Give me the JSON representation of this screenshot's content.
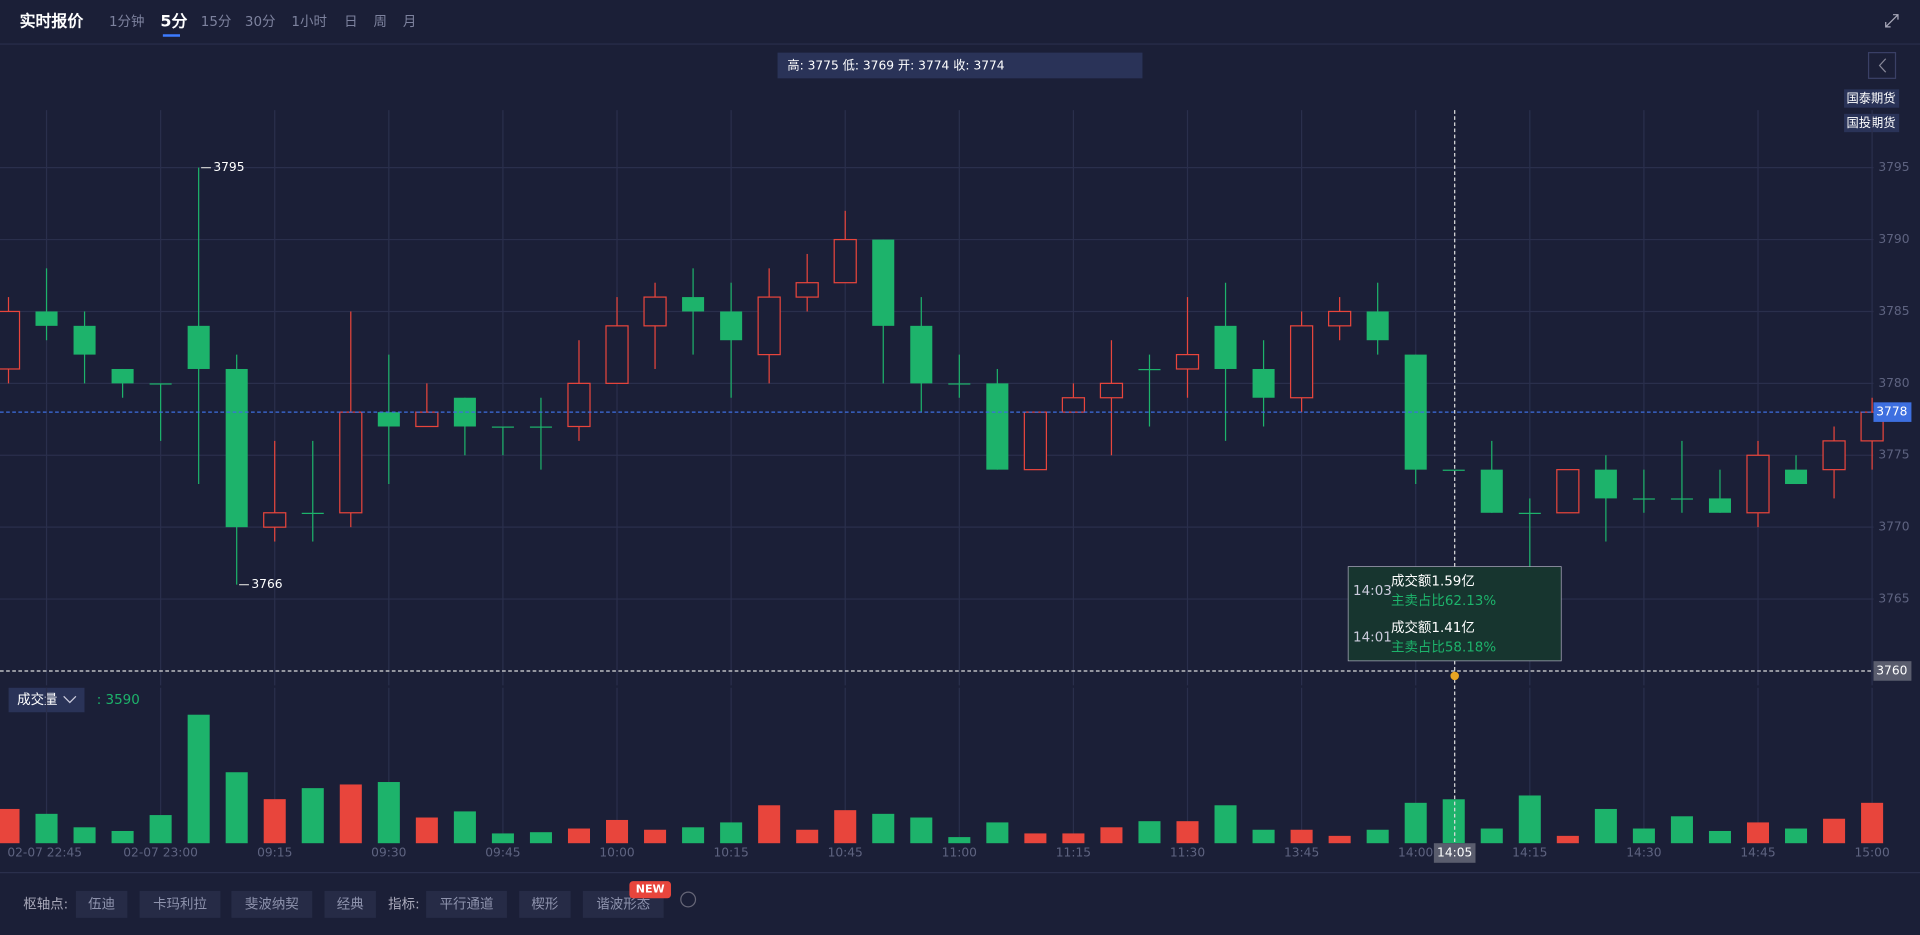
{
  "header": {
    "title": "实时报价",
    "tabs": [
      "1分钟",
      "5分",
      "15分",
      "30分",
      "1小时",
      "日",
      "周",
      "月"
    ]
  },
  "ohlc_summary": "高: 3775 低: 3769 开: 3774 收: 3774",
  "brokers": [
    "国泰期货",
    "国投期货"
  ],
  "chart_data": [
    {
      "type": "candlestick",
      "categories": [
        null,
        "02-07 22:45",
        null,
        null,
        "02-07 23:00",
        null,
        null,
        "09:15",
        null,
        null,
        "09:30",
        null,
        null,
        "09:45",
        null,
        null,
        "10:00",
        null,
        null,
        "10:15",
        null,
        null,
        "10:45",
        null,
        null,
        "11:00",
        null,
        null,
        "11:15",
        null,
        null,
        "11:30",
        null,
        null,
        "13:45",
        null,
        null,
        "14:00",
        null,
        null,
        "14:15",
        null,
        null,
        "14:30",
        null,
        null,
        "14:45",
        null,
        null,
        "15:00"
      ],
      "crosshair_label": "14:05",
      "open": [
        3781,
        3785,
        3784,
        3781,
        3780,
        3784,
        3781,
        3770,
        3771,
        3771,
        3778,
        3777,
        3779,
        3777,
        3777,
        3777,
        3780,
        3784,
        3786,
        3785,
        3782,
        3786,
        3787,
        3790,
        3784,
        3780,
        3780,
        3774,
        3778,
        3779,
        3781,
        3781,
        3784,
        3781,
        3779,
        3784,
        3785,
        3782,
        3774,
        3774,
        3771,
        3771,
        3774,
        3772,
        3772,
        3772,
        3771,
        3774,
        3774,
        3776
      ],
      "high": [
        3786,
        3788,
        3785,
        3781,
        3780,
        3795,
        3782,
        3776,
        3776,
        3785,
        3782,
        3780,
        3779,
        3777,
        3779,
        3783,
        3786,
        3787,
        3788,
        3787,
        3788,
        3789,
        3792,
        3790,
        3786,
        3782,
        3781,
        3778,
        3780,
        3783,
        3782,
        3786,
        3787,
        3783,
        3785,
        3786,
        3787,
        3782,
        3774,
        3776,
        3772,
        3774,
        3775,
        3774,
        3776,
        3774,
        3776,
        3775,
        3777,
        3779
      ],
      "low": [
        3780,
        3783,
        3780,
        3779,
        3776,
        3773,
        3766,
        3769,
        3769,
        3770,
        3773,
        3777,
        3775,
        3775,
        3774,
        3776,
        3780,
        3781,
        3782,
        3779,
        3780,
        3785,
        3787,
        3780,
        3778,
        3779,
        3774,
        3774,
        3778,
        3775,
        3777,
        3779,
        3776,
        3777,
        3778,
        3783,
        3782,
        3773,
        3774,
        3771,
        3767,
        3771,
        3769,
        3771,
        3771,
        3771,
        3770,
        3773,
        3772,
        3774
      ],
      "close": [
        3785,
        3784,
        3782,
        3780,
        3780,
        3781,
        3770,
        3771,
        3771,
        3778,
        3777,
        3778,
        3777,
        3777,
        3777,
        3780,
        3784,
        3786,
        3785,
        3783,
        3786,
        3787,
        3790,
        3784,
        3780,
        3780,
        3774,
        3778,
        3779,
        3780,
        3781,
        3782,
        3781,
        3779,
        3784,
        3785,
        3783,
        3774,
        3774,
        3771,
        3771,
        3774,
        3772,
        3772,
        3772,
        3771,
        3775,
        3773,
        3776,
        3778
      ],
      "up_color": "#e8453c",
      "down_color": "#1db36b",
      "ylim": [
        3759,
        3799
      ],
      "yticks": [
        3765,
        3770,
        3775,
        3780,
        3785,
        3790,
        3795
      ],
      "crosshair_price": 3760,
      "grid": true
    },
    {
      "type": "bar",
      "label": "成交量",
      "readout": ": 3590",
      "values": [
        2800,
        2400,
        1300,
        1000,
        2300,
        10500,
        5800,
        3600,
        4500,
        4800,
        5000,
        2100,
        2600,
        800,
        900,
        1200,
        1900,
        1100,
        1300,
        1700,
        3100,
        1100,
        2700,
        2400,
        2100,
        500,
        1700,
        800,
        800,
        1300,
        1800,
        1800,
        3100,
        1100,
        1100,
        600,
        1100,
        3300,
        3590,
        1200,
        3900,
        600,
        2800,
        1200,
        2200,
        1000,
        1700,
        1200,
        2000,
        3300
      ],
      "ylim": [
        0,
        12000
      ]
    }
  ],
  "tooltip": [
    {
      "time": "14:03",
      "amount": "成交额1.59亿",
      "ratio": "主卖占比62.13%"
    },
    {
      "time": "14:01",
      "amount": "成交额1.41亿",
      "ratio": "主卖占比58.18%"
    }
  ],
  "toolbar": {
    "pivot_label": "枢轴点:",
    "pivots": [
      "伍迪",
      "卡玛利拉",
      "斐波纳契",
      "经典"
    ],
    "indicator_label": "指标:",
    "indicators": [
      "平行通道",
      "楔形",
      "谐波形态"
    ],
    "badge": "NEW"
  }
}
